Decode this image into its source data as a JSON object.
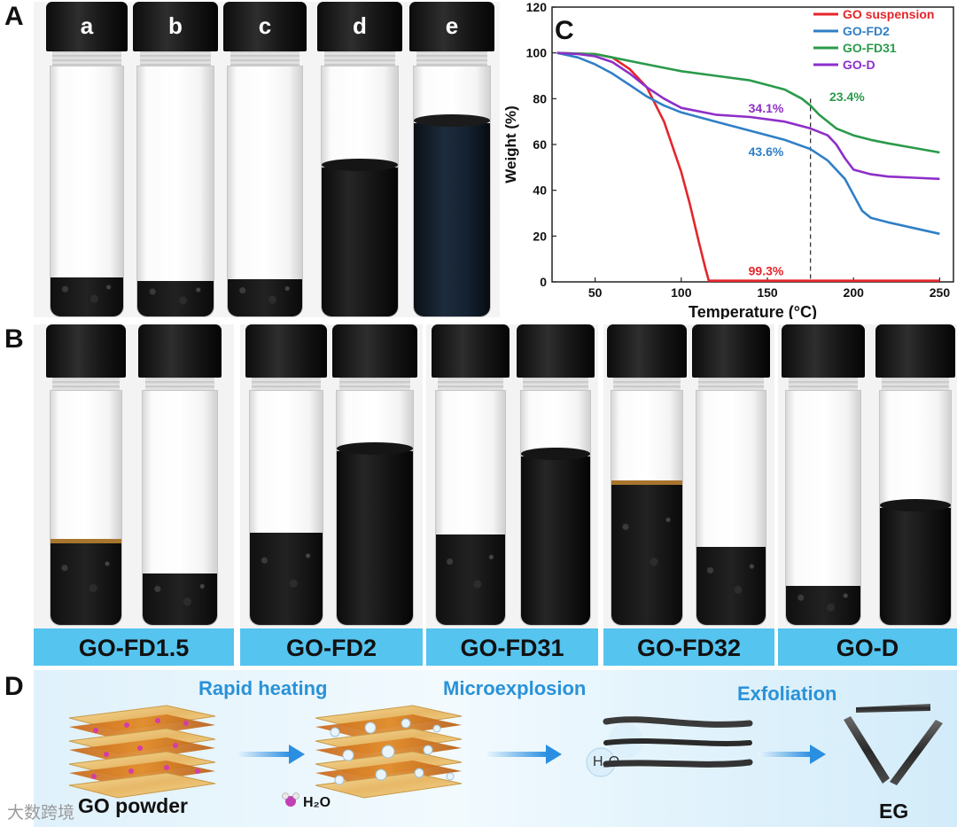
{
  "panels": {
    "a": "A",
    "b": "B",
    "c": "C",
    "d": "D"
  },
  "panel_a": {
    "vials": [
      "a",
      "b",
      "c",
      "d",
      "e"
    ]
  },
  "panel_b": {
    "groups": [
      "GO-FD1.5",
      "GO-FD2",
      "GO-FD31",
      "GO-FD32",
      "GO-D"
    ]
  },
  "panel_d": {
    "steps": [
      "Rapid heating",
      "Microexplosion",
      "Exfoliation"
    ],
    "start_label": "GO powder",
    "end_label": "EG",
    "legend_water": "H₂O",
    "bubble_label": "H₂O",
    "watermark": "大数跨境"
  },
  "colors": {
    "go_suspension": "#e5252a",
    "go_fd2": "#2f7fc6",
    "go_fd31": "#2a9a4a",
    "go_d": "#8e2fc8",
    "band_blue": "#55c4ef",
    "process_blue": "#2a92d8"
  },
  "chart_data": {
    "type": "line",
    "xlabel": "Temperature (°C)",
    "ylabel": "Weight (%)",
    "xlim": [
      25,
      258
    ],
    "ylim": [
      0,
      120
    ],
    "xticks": [
      50,
      100,
      150,
      200,
      250
    ],
    "yticks": [
      0,
      20,
      40,
      60,
      80,
      100,
      120
    ],
    "legend_position": "top-right",
    "series": [
      {
        "name": "GO suspension",
        "color": "#e5252a",
        "x": [
          28,
          50,
          60,
          70,
          80,
          90,
          100,
          105,
          110,
          114,
          116,
          125,
          150,
          200,
          250
        ],
        "y": [
          100,
          99.5,
          98,
          93,
          85,
          70,
          48,
          34,
          18,
          6,
          0.5,
          0.5,
          0.5,
          0.5,
          0.5
        ]
      },
      {
        "name": "GO-FD2",
        "color": "#2f7fc6",
        "x": [
          28,
          40,
          50,
          60,
          70,
          80,
          90,
          100,
          120,
          140,
          160,
          175,
          185,
          195,
          200,
          205,
          210,
          220,
          235,
          250
        ],
        "y": [
          100,
          98,
          95,
          91,
          86,
          81,
          77,
          74,
          70,
          66,
          62,
          58,
          53,
          45,
          38,
          31,
          28,
          26,
          23.5,
          21
        ]
      },
      {
        "name": "GO-FD31",
        "color": "#2a9a4a",
        "x": [
          28,
          50,
          60,
          80,
          100,
          120,
          140,
          160,
          170,
          175,
          180,
          190,
          200,
          210,
          220,
          235,
          250
        ],
        "y": [
          100,
          99.5,
          98,
          95,
          92,
          90,
          88,
          84,
          80,
          77,
          73,
          67,
          64,
          62,
          60.5,
          58.5,
          56.5
        ]
      },
      {
        "name": "GO-D",
        "color": "#8e2fc8",
        "x": [
          28,
          40,
          50,
          60,
          70,
          80,
          90,
          100,
          120,
          140,
          160,
          175,
          185,
          190,
          195,
          200,
          210,
          220,
          235,
          250
        ],
        "y": [
          100,
          99.5,
          98.5,
          96,
          91,
          85,
          80,
          76,
          73,
          72,
          70,
          67,
          64,
          60,
          54,
          49,
          47,
          46,
          45.5,
          45
        ]
      }
    ],
    "annotations": [
      {
        "text": "34.1%",
        "color": "#8e2fc8",
        "x": 139,
        "y": 74
      },
      {
        "text": "23.4%",
        "color": "#2a9a4a",
        "x": 186,
        "y": 79
      },
      {
        "text": "43.6%",
        "color": "#2f7fc6",
        "x": 139,
        "y": 55
      },
      {
        "text": "99.3%",
        "color": "#e5252a",
        "x": 139,
        "y": 3
      }
    ],
    "vline_x": 175
  }
}
